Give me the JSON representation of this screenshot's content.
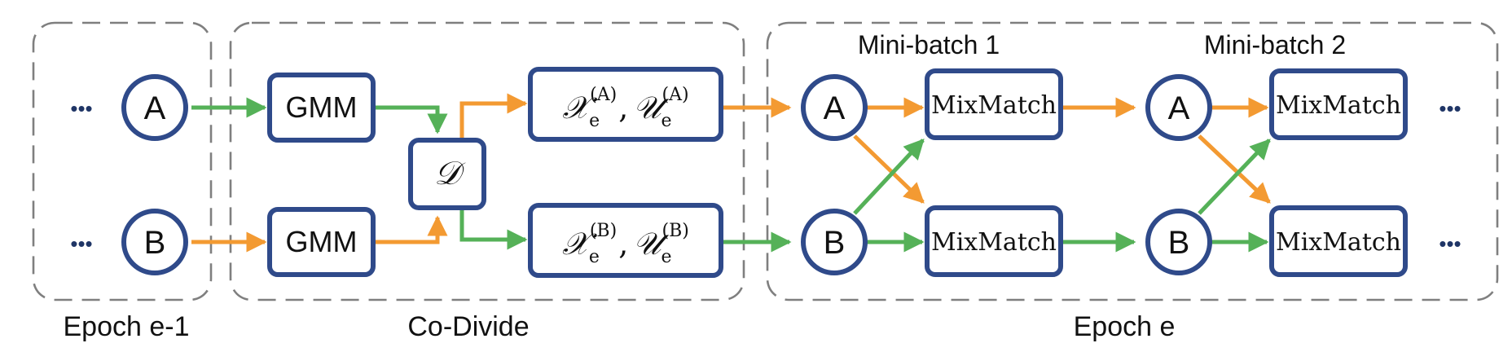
{
  "groups": {
    "epoch_prev": "Epoch e-1",
    "co_divide": "Co-Divide",
    "epoch_curr": "Epoch e",
    "minibatch_1": "Mini-batch 1",
    "minibatch_2": "Mini-batch 2"
  },
  "nodes": {
    "net_a": "A",
    "net_b": "B",
    "gmm": "GMM",
    "divide_symbol": "𝒟",
    "mixmatch": "MixMatch",
    "split_main": "𝒳",
    "split_aux": "𝒰",
    "split_sub": "e",
    "split_sup_a": "(A)",
    "split_sup_b": "(B)",
    "comma": ",",
    "ellipsis": "•••"
  },
  "colors": {
    "orange_arrow": "#f39a32",
    "green_arrow": "#55b158",
    "node_border": "#2f4a8a",
    "group_border": "#7f7f7f"
  }
}
